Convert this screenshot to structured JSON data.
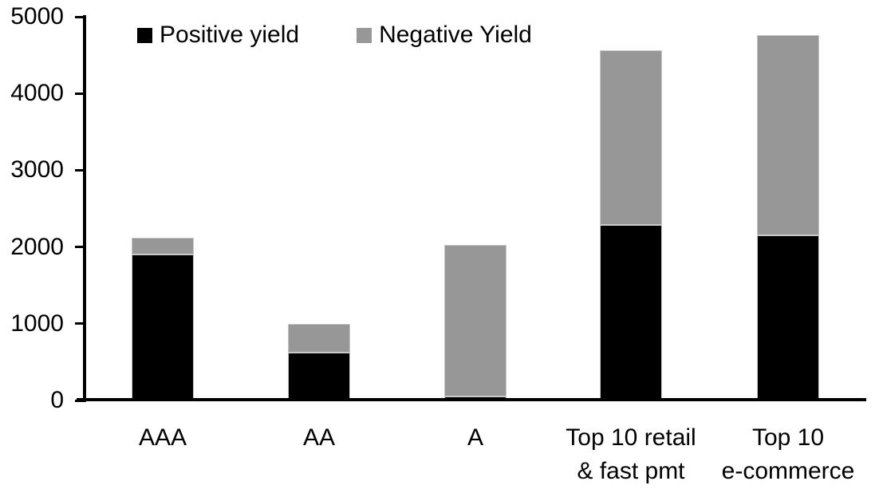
{
  "legend": {
    "positive_label": "Positive yield",
    "negative_label": "Negative Yield"
  },
  "colors": {
    "positive": "#000000",
    "negative": "#979797",
    "axis": "#000000",
    "text": "#000000",
    "background": "#ffffff"
  },
  "chart_data": {
    "type": "bar",
    "stacked": true,
    "title": "",
    "xlabel": "",
    "ylabel": "",
    "categories": [
      "AAA",
      "AA",
      "A",
      "Top 10 retail\n& fast pmt",
      "Top 10\ne-commerce"
    ],
    "series": [
      {
        "name": "Positive yield",
        "color": "#000000",
        "values": [
          1900,
          620,
          50,
          2290,
          2150
        ]
      },
      {
        "name": "Negative Yield",
        "color": "#979797",
        "values": [
          220,
          380,
          1980,
          2270,
          2610
        ]
      }
    ],
    "totals": [
      2120,
      1000,
      2030,
      4560,
      4760
    ],
    "ylim": [
      0,
      5000
    ],
    "yticks": [
      0,
      1000,
      2000,
      3000,
      4000,
      5000
    ],
    "grid": false,
    "legend_position": "top-left-inside"
  }
}
